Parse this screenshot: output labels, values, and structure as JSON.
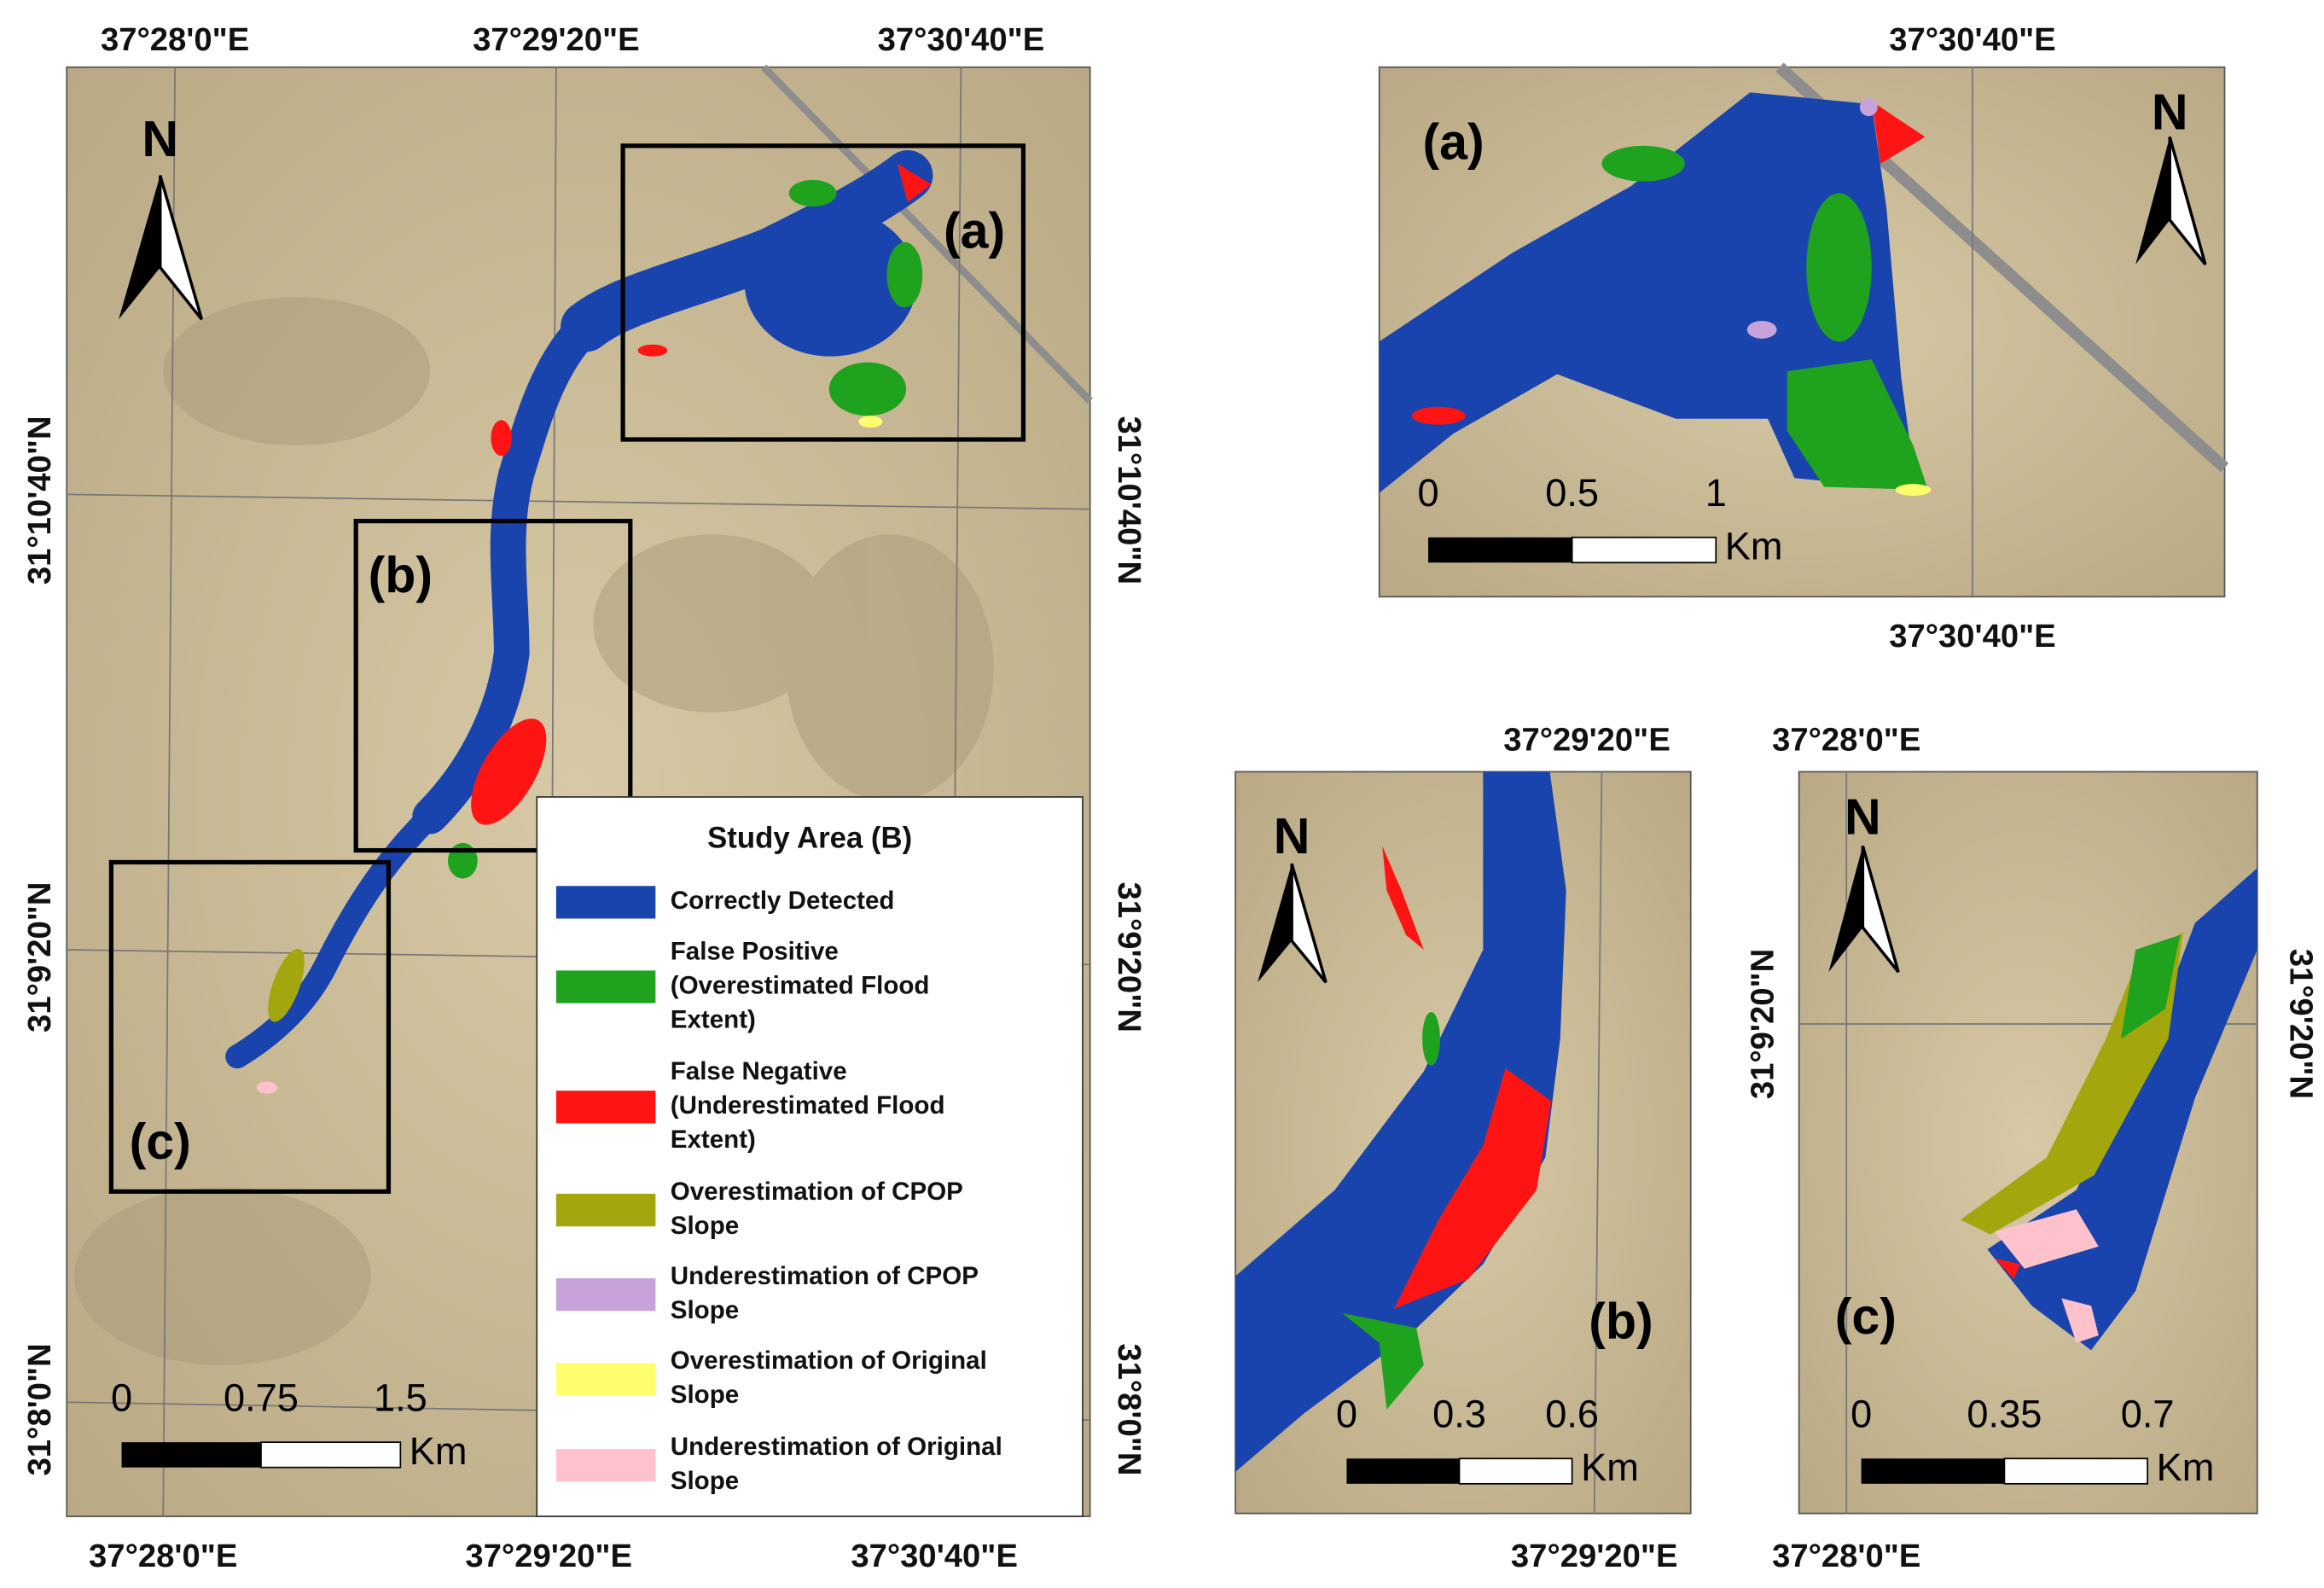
{
  "main_map": {
    "top_labels": [
      "37°28'0\"E",
      "37°29'20\"E",
      "37°30'40\"E"
    ],
    "bottom_labels": [
      "37°28'0\"E",
      "37°29'20\"E",
      "37°30'40\"E"
    ],
    "left_labels": [
      "31°10'40\"N",
      "31°9'20\"N",
      "31°8'0\"N"
    ],
    "right_labels": [
      "31°10'40\"N",
      "31°9'20\"N",
      "31°8'0\"N"
    ],
    "north": "N",
    "box_labels": [
      "(a)",
      "(b)",
      "(c)"
    ],
    "scale": {
      "ticks": [
        0,
        0.75,
        1.5
      ],
      "unit": "Km"
    }
  },
  "legend": {
    "title": "Study Area (B)",
    "items": [
      {
        "lines": [
          "Correctly Detected"
        ],
        "color": "#1a44ad"
      },
      {
        "lines": [
          "False Positive",
          "(Overestimated Flood",
          "Extent)"
        ],
        "color": "#1fa31f"
      },
      {
        "lines": [
          "False Negative",
          "(Underestimated Flood",
          "Extent)"
        ],
        "color": "#ff1414"
      },
      {
        "lines": [
          "Overestimation of CPOP",
          "Slope"
        ],
        "color": "#a3a60c"
      },
      {
        "lines": [
          "Underestimation of CPOP",
          "Slope"
        ],
        "color": "#c8a2da"
      },
      {
        "lines": [
          "Overestimation of Original",
          "Slope"
        ],
        "color": "#ffff6e"
      },
      {
        "lines": [
          "Underestimation of Original",
          "Slope"
        ],
        "color": "#ffc2cc"
      }
    ]
  },
  "insets": [
    {
      "label": "(a)",
      "north": "N",
      "top_labels": [
        "37°30'40\"E"
      ],
      "bottom_labels": [
        "37°30'40\"E"
      ],
      "scale": {
        "ticks": [
          0,
          0.5,
          1
        ],
        "unit": "Km"
      }
    },
    {
      "label": "(b)",
      "north": "N",
      "top_labels": [
        "37°29'20\"E"
      ],
      "bottom_labels": [
        "37°29'20\"E"
      ],
      "scale": {
        "ticks": [
          0,
          0.3,
          0.6
        ],
        "unit": "Km"
      }
    },
    {
      "label": "(c)",
      "north": "N",
      "top_labels": [
        "37°28'0\"E"
      ],
      "bottom_labels": [
        "37°28'0\"E"
      ],
      "left_labels": [
        "31°9'20\"N"
      ],
      "right_labels": [
        "31°9'20\"N"
      ],
      "scale": {
        "ticks": [
          0,
          0.35,
          0.7
        ],
        "unit": "Km"
      }
    }
  ]
}
